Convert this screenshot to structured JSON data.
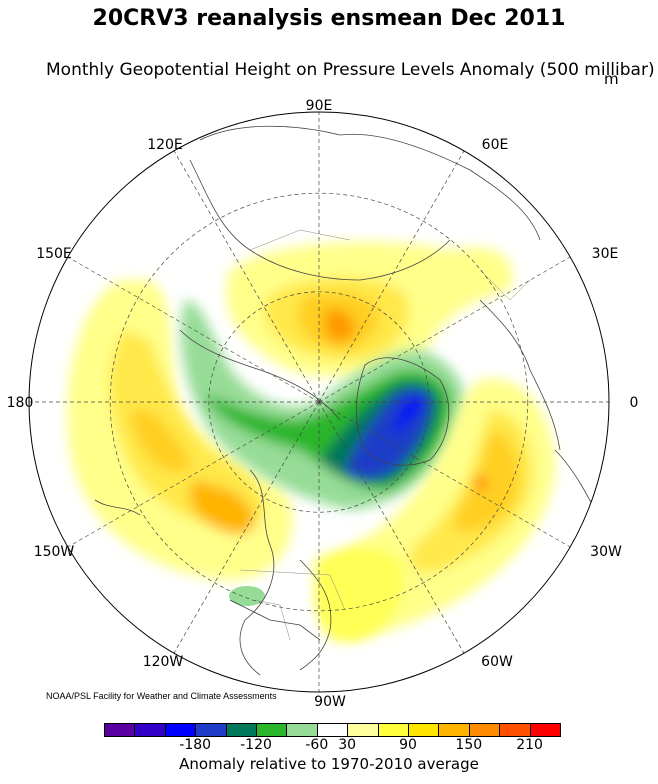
{
  "header": {
    "title": "20CRV3 reanalysis ensmean Dec 2011",
    "subtitle": "Monthly Geopotential Height on Pressure Levels Anomaly (500 millibar)",
    "unit": "m"
  },
  "map": {
    "projection": "north polar stereographic",
    "longitude_labels": [
      "90E",
      "60E",
      "30E",
      "0",
      "30W",
      "60W",
      "90W",
      "120W",
      "150W",
      "180",
      "150E",
      "120E"
    ],
    "anomaly_regions": [
      {
        "region": "Greenland / Canadian Arctic",
        "level": "-210 to -150",
        "color": "#0000ff"
      },
      {
        "region": "Canadian Arctic band",
        "level": "-120 to -60",
        "color": "#2ab52a"
      },
      {
        "region": "Siberia / Arctic Ocean",
        "level": "+60 to +150",
        "color": "#ff9a00"
      },
      {
        "region": "North Atlantic",
        "level": "+60 to +180",
        "color": "#ffb400"
      },
      {
        "region": "North Pacific",
        "level": "+30 to +120",
        "color": "#ffd200"
      },
      {
        "region": "Eastern United States",
        "level": "+30 to +60",
        "color": "#ffff55"
      }
    ]
  },
  "colorbar": {
    "colors": [
      "#5a00a0",
      "#3200c8",
      "#0000ff",
      "#1e3cc8",
      "#00785a",
      "#2ab52a",
      "#96dc96",
      "#ffffff",
      "#ffffa0",
      "#ffff3c",
      "#ffe600",
      "#ffb400",
      "#ff8c00",
      "#ff5000",
      "#ff0000"
    ],
    "tick_labels": [
      "-180",
      "-120",
      "-60",
      "30",
      "90",
      "150",
      "210"
    ],
    "caption": "Anomaly relative to 1970-2010 average"
  },
  "credit": "NOAA/PSL Facility for Weather and Climate Assessments"
}
